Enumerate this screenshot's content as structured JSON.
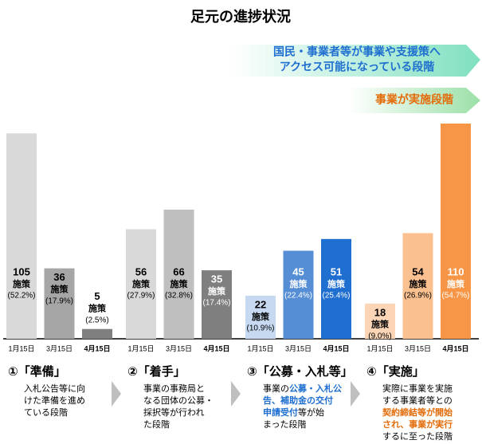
{
  "chart_data": {
    "type": "bar",
    "title": "足元の進捗状況",
    "stage_labels": [
      "国民・事業者等が事業や支援策へ",
      "アクセス可能になっている段階",
      "事業が実施段階"
    ],
    "categories": [
      "1月15日",
      "3月15日",
      "4月15日"
    ],
    "unit": "施策",
    "ylim": [
      0,
      110
    ],
    "groups": [
      {
        "label": "①「準備」",
        "values": [
          105,
          36,
          5
        ],
        "shares": [
          "(52.2%)",
          "(17.9%)",
          "(2.5%)"
        ],
        "colors": [
          "#d9d9d9",
          "#a6a6a6",
          "#7f7f7f"
        ],
        "highlight": "#000000",
        "description": [
          [
            {
              "text": "入札公告等に向"
            }
          ],
          [
            {
              "text": "けた準備を進め"
            }
          ],
          [
            {
              "text": "ている段階"
            }
          ]
        ]
      },
      {
        "label": "②「着手」",
        "values": [
          56,
          66,
          35
        ],
        "shares": [
          "(27.9%)",
          "(32.8%)",
          "(17.4%)"
        ],
        "colors": [
          "#d9d9d9",
          "#bfbfbf",
          "#7f7f7f"
        ],
        "highlight": "#000000",
        "description": [
          [
            {
              "text": "事業の事務局と"
            }
          ],
          [
            {
              "text": "なる団体の公募・"
            }
          ],
          [
            {
              "text": "採択等が行われ"
            }
          ],
          [
            {
              "text": "た段階"
            }
          ]
        ]
      },
      {
        "label": "③「公募・入札等」",
        "values": [
          22,
          45,
          51
        ],
        "shares": [
          "(10.9%)",
          "(22.4%)",
          "(25.4%)"
        ],
        "colors": [
          "#c6d9f1",
          "#558ed5",
          "#1f6fd0"
        ],
        "highlight": "#1f6fd0",
        "description": [
          [
            {
              "text": "事業の"
            },
            {
              "text": "公募・入札公",
              "emphasis": true
            }
          ],
          [
            {
              "text": "告、補助金の交付",
              "emphasis": true
            }
          ],
          [
            {
              "text": "申請受付",
              "emphasis": true
            },
            {
              "text": "等が始"
            }
          ],
          [
            {
              "text": "まった段階"
            }
          ]
        ]
      },
      {
        "label": "④「実施」",
        "values": [
          18,
          54,
          110
        ],
        "shares": [
          "(9.0%)",
          "(26.9%)",
          "(54.7%)"
        ],
        "colors": [
          "#fbd5b5",
          "#fac090",
          "#f79646"
        ],
        "highlight": "#e36c09",
        "description": [
          [
            {
              "text": "実際に事業を実施"
            }
          ],
          [
            {
              "text": "する事業者等との"
            }
          ],
          [
            {
              "text": "契約締結等が開始",
              "emphasis": true
            }
          ],
          [
            {
              "text": "され、事業が実行",
              "emphasis": true
            }
          ],
          [
            {
              "text": "するに至った段階"
            }
          ]
        ]
      }
    ]
  }
}
